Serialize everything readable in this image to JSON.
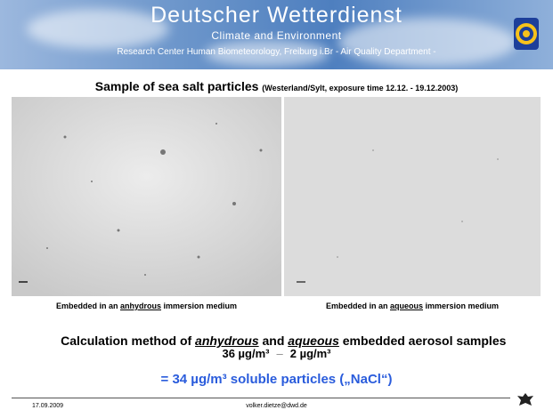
{
  "header": {
    "title": "Deutscher Wetterdienst",
    "subtitle": "Climate and Environment",
    "department": "Research Center Human  Biometeorology, Freiburg i.Br    - Air Quality Department -"
  },
  "heading": {
    "title": "Sample of sea salt particles",
    "note": "(Westerland/Sylt, exposure time 12.12. - 19.12.2003)"
  },
  "images": [
    {
      "caption": {
        "before": "Embedded in an ",
        "emphasis": "anhydrous",
        "after": " immersion medium"
      }
    },
    {
      "caption": {
        "before": "Embedded in an ",
        "emphasis": "aqueous",
        "after": " immersion medium"
      }
    }
  ],
  "calculation": {
    "before": "Calculation method of ",
    "first": "anhydrous",
    "middle": " and ",
    "second": "aqueous",
    "after": " embedded aerosol samples"
  },
  "equation": {
    "minuend": "36 µg/m³",
    "operator": "–",
    "subtrahend": "2 µg/m³"
  },
  "result": "= 34 µg/m³ soluble particles („NaCl“)",
  "footer": {
    "date": "17.09.2009",
    "email": "volker.dietze@dwd.de"
  }
}
